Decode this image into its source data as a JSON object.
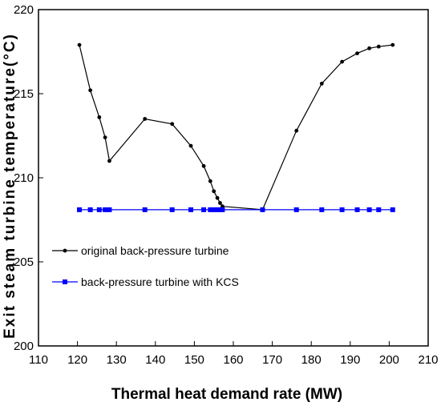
{
  "chart_data": {
    "type": "line",
    "xlabel": "Thermal heat demand rate (MW)",
    "ylabel": "Exit steam turbine temperature(°C)",
    "xlim": [
      110,
      210
    ],
    "ylim": [
      200,
      220
    ],
    "x_ticks": [
      "110",
      "120",
      "130",
      "140",
      "150",
      "160",
      "170",
      "180",
      "190",
      "200",
      "210"
    ],
    "y_ticks": [
      "200",
      "205",
      "210",
      "215",
      "220"
    ],
    "grid": false,
    "legend_position": "center-left",
    "series": [
      {
        "name": "original back-pressure turbine",
        "color": "#000000",
        "marker": "circle",
        "x": [
          120.5,
          123.3,
          125.6,
          127.1,
          128.2,
          137.3,
          144.3,
          149.1,
          152.4,
          154.1,
          155.0,
          155.9,
          156.6,
          157.2,
          167.5,
          176.2,
          182.7,
          187.9,
          191.8,
          194.9,
          197.3,
          200.9
        ],
        "y": [
          217.9,
          215.2,
          213.6,
          212.4,
          211.0,
          213.5,
          213.2,
          211.9,
          210.7,
          209.8,
          209.2,
          208.8,
          208.5,
          208.3,
          208.1,
          212.8,
          215.6,
          216.9,
          217.4,
          217.7,
          217.8,
          217.9
        ]
      },
      {
        "name": "back-pressure turbine with KCS",
        "color": "#0000ff",
        "marker": "square",
        "x": [
          120.5,
          123.3,
          125.6,
          127.1,
          128.2,
          137.3,
          144.3,
          149.1,
          152.4,
          154.1,
          155.0,
          155.9,
          156.6,
          157.2,
          167.5,
          176.2,
          182.7,
          187.9,
          191.8,
          194.9,
          197.3,
          200.9
        ],
        "y": [
          208.1,
          208.1,
          208.1,
          208.1,
          208.1,
          208.1,
          208.1,
          208.1,
          208.1,
          208.1,
          208.1,
          208.1,
          208.1,
          208.1,
          208.1,
          208.1,
          208.1,
          208.1,
          208.1,
          208.1,
          208.1,
          208.1
        ]
      }
    ]
  }
}
